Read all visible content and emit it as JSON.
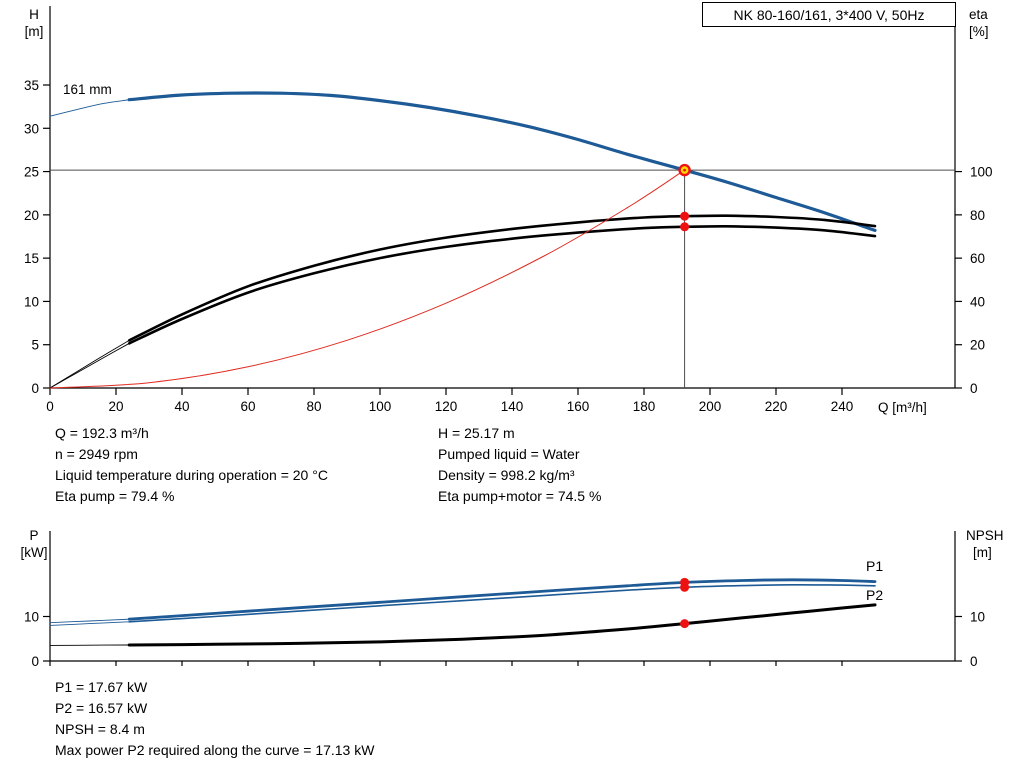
{
  "colors": {
    "curve_blue": "#1d5a96",
    "curve_black": "#000000",
    "curve_red": "#e02b20",
    "marker_red": "#ee1111",
    "duty_yellow": "#ffd800",
    "axis_black": "#000000",
    "ref_line_gray": "#4d4d4d"
  },
  "axes_text": {
    "top_left_1": "H",
    "top_left_2": "[m]",
    "top_right_1": "eta",
    "top_right_2": "[%]",
    "top_x": "Q [m³/h]",
    "bottom_left_1": "P",
    "bottom_left_2": "[kW]",
    "bottom_right_1": "NPSH",
    "bottom_right_2": "[m]"
  },
  "info": {
    "left": [
      "Q = 192.3 m³/h",
      "n = 2949 rpm",
      "Liquid temperature during operation = 20 °C",
      "Eta pump = 79.4 %"
    ],
    "right": [
      "H = 25.17 m",
      "Pumped liquid = Water",
      "Density = 998.2 kg/m³",
      "Eta pump+motor = 74.5 %"
    ]
  },
  "results": [
    "P1 = 17.67 kW",
    "P2 = 16.57 kW",
    "NPSH = 8.4 m",
    "Max power P2 required along the curve = 17.13 kW"
  ],
  "chart_data": [
    {
      "id": "head-eta-chart",
      "type": "line",
      "title": "NK 80-160/161, 3*400 V, 50Hz",
      "xlabel": "Q [m³/h]",
      "ylabel_left": "H [m]",
      "ylabel_right": "eta [%]",
      "xlim": [
        0,
        274
      ],
      "x_ticks": [
        0,
        20,
        40,
        60,
        80,
        100,
        120,
        140,
        160,
        180,
        200,
        220,
        240
      ],
      "ylim_left": [
        0,
        35
      ],
      "y_ticks_left": [
        0,
        5,
        10,
        15,
        20,
        25,
        30,
        35
      ],
      "ylim_right": [
        0,
        140
      ],
      "y_ticks_right": [
        0,
        20,
        40,
        60,
        80,
        100
      ],
      "curve_label": {
        "text": "161 mm"
      },
      "series": [
        {
          "name": "pump-curve-161mm",
          "axis": "left",
          "color": "blue",
          "width": 3.2,
          "lead_in": [
            [
              0,
              31.4
            ],
            [
              8,
              32.15
            ],
            [
              16,
              32.85
            ],
            [
              24,
              33.3
            ]
          ],
          "points": [
            [
              24,
              33.3
            ],
            [
              40,
              33.85
            ],
            [
              55,
              34.05
            ],
            [
              70,
              34.05
            ],
            [
              85,
              33.8
            ],
            [
              100,
              33.2
            ],
            [
              115,
              32.4
            ],
            [
              130,
              31.4
            ],
            [
              145,
              30.2
            ],
            [
              160,
              28.7
            ],
            [
              175,
              27.0
            ],
            [
              192.3,
              25.17
            ],
            [
              205,
              23.8
            ],
            [
              220,
              22.0
            ],
            [
              235,
              20.2
            ],
            [
              250,
              18.2
            ]
          ]
        },
        {
          "name": "eta-pump-curve",
          "axis": "right",
          "color": "black",
          "width": 2.6,
          "lead_in": [
            [
              0,
              0
            ],
            [
              8,
              7.4
            ],
            [
              16,
              14.8
            ],
            [
              24,
              22
            ]
          ],
          "points": [
            [
              24,
              22
            ],
            [
              40,
              34
            ],
            [
              60,
              47
            ],
            [
              80,
              56.5
            ],
            [
              100,
              64
            ],
            [
              120,
              69.5
            ],
            [
              140,
              73.5
            ],
            [
              160,
              76.5
            ],
            [
              180,
              78.8
            ],
            [
              192.3,
              79.4
            ],
            [
              205,
              79.6
            ],
            [
              220,
              79.0
            ],
            [
              235,
              77.6
            ],
            [
              250,
              74.8
            ]
          ]
        },
        {
          "name": "eta-pump-motor-curve",
          "axis": "right",
          "color": "black",
          "width": 2.6,
          "lead_in": [
            [
              0,
              0
            ],
            [
              8,
              6.9
            ],
            [
              16,
              13.8
            ],
            [
              24,
              20.6
            ]
          ],
          "points": [
            [
              24,
              20.6
            ],
            [
              40,
              31.9
            ],
            [
              60,
              44.1
            ],
            [
              80,
              53.0
            ],
            [
              100,
              60.0
            ],
            [
              120,
              65.2
            ],
            [
              140,
              69.0
            ],
            [
              160,
              71.8
            ],
            [
              180,
              73.9
            ],
            [
              192.3,
              74.5
            ],
            [
              205,
              74.7
            ],
            [
              220,
              74.1
            ],
            [
              235,
              72.8
            ],
            [
              250,
              70.2
            ]
          ]
        },
        {
          "name": "system-curve",
          "axis": "left",
          "color": "red",
          "width": 1,
          "points": [
            [
              0,
              0
            ],
            [
              30,
              0.61
            ],
            [
              60,
              2.45
            ],
            [
              90,
              5.51
            ],
            [
              120,
              9.8
            ],
            [
              150,
              15.31
            ],
            [
              175,
              20.84
            ],
            [
              192.3,
              25.17
            ]
          ]
        }
      ],
      "duty_point": {
        "q": 192.3,
        "h": 25.17
      },
      "duty_dots_right_axis": [
        79.4,
        74.5
      ]
    },
    {
      "id": "power-npsh-chart",
      "type": "line",
      "ylabel_left": "P [kW]",
      "ylabel_right": "NPSH [m]",
      "xlim": [
        0,
        274
      ],
      "x_ticks": [
        0,
        20,
        40,
        60,
        80,
        100,
        120,
        140,
        160,
        180,
        200,
        220,
        240
      ],
      "x_tick_labels": false,
      "ylim_left": [
        0,
        29
      ],
      "y_ticks_left": [
        0,
        10
      ],
      "ylim_right": [
        0,
        29
      ],
      "y_ticks_right": [
        0,
        10
      ],
      "series": [
        {
          "name": "p1-curve",
          "axis": "left",
          "color": "blue",
          "width": 2.8,
          "label": {
            "text": "P1"
          },
          "lead_in": [
            [
              0,
              8.6
            ],
            [
              12,
              9.0
            ],
            [
              24,
              9.4
            ]
          ],
          "points": [
            [
              24,
              9.4
            ],
            [
              50,
              10.7
            ],
            [
              75,
              11.95
            ],
            [
              100,
              13.2
            ],
            [
              125,
              14.45
            ],
            [
              150,
              15.7
            ],
            [
              175,
              16.9
            ],
            [
              192.3,
              17.67
            ],
            [
              210,
              18.1
            ],
            [
              225,
              18.25
            ],
            [
              240,
              18.1
            ],
            [
              250,
              17.85
            ]
          ]
        },
        {
          "name": "p2-curve",
          "axis": "left",
          "color": "blue",
          "width": 1.6,
          "label": {
            "text": "P2"
          },
          "lead_in": [
            [
              0,
              8.0
            ],
            [
              12,
              8.4
            ],
            [
              24,
              8.8
            ]
          ],
          "points": [
            [
              24,
              8.8
            ],
            [
              50,
              10.0
            ],
            [
              75,
              11.2
            ],
            [
              100,
              12.4
            ],
            [
              125,
              13.55
            ],
            [
              150,
              14.75
            ],
            [
              175,
              15.9
            ],
            [
              192.3,
              16.57
            ],
            [
              210,
              16.95
            ],
            [
              225,
              17.13
            ],
            [
              240,
              17.05
            ],
            [
              250,
              16.9
            ]
          ]
        },
        {
          "name": "npsh-curve",
          "axis": "right",
          "color": "black",
          "width": 3,
          "lead_in": [
            [
              0,
              3.5
            ],
            [
              12,
              3.55
            ],
            [
              24,
              3.6
            ]
          ],
          "points": [
            [
              24,
              3.6
            ],
            [
              50,
              3.75
            ],
            [
              75,
              3.95
            ],
            [
              100,
              4.3
            ],
            [
              125,
              4.9
            ],
            [
              150,
              5.8
            ],
            [
              175,
              7.2
            ],
            [
              192.3,
              8.4
            ],
            [
              210,
              9.7
            ],
            [
              225,
              10.8
            ],
            [
              240,
              11.9
            ],
            [
              250,
              12.6
            ]
          ]
        }
      ],
      "duty_markers": [
        {
          "series": "p1-curve",
          "q": 192.3,
          "v": 17.67
        },
        {
          "series": "p2-curve",
          "q": 192.3,
          "v": 16.57
        },
        {
          "series": "npsh-curve",
          "q": 192.3,
          "v": 8.4
        }
      ]
    }
  ]
}
